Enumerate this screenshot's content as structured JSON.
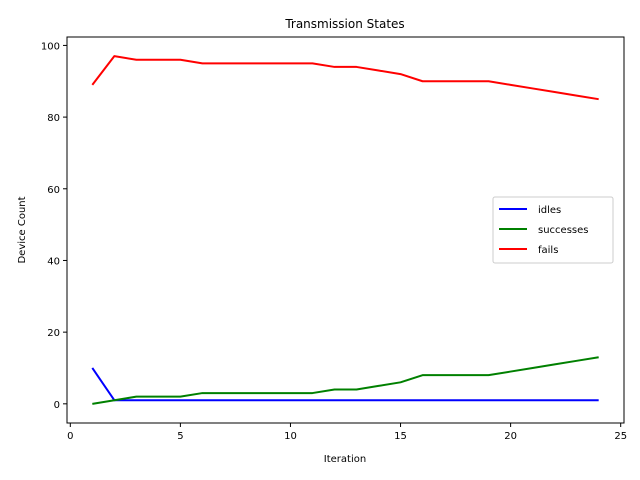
{
  "chart_data": {
    "type": "line",
    "title": "Transmission States",
    "xlabel": "Iteration",
    "ylabel": "Device Count",
    "xlim": [
      0,
      25
    ],
    "ylim": [
      0,
      100
    ],
    "x_ticks": [
      0,
      5,
      10,
      15,
      20,
      25
    ],
    "y_ticks": [
      0,
      20,
      40,
      60,
      80,
      100
    ],
    "grid": false,
    "legend_position": "center-right",
    "x": [
      1,
      2,
      3,
      4,
      5,
      6,
      7,
      8,
      9,
      10,
      11,
      12,
      13,
      14,
      15,
      16,
      17,
      18,
      19,
      20,
      21,
      22,
      23,
      24
    ],
    "series": [
      {
        "name": "idles",
        "color": "#0000ff",
        "values": [
          10,
          1,
          1,
          1,
          1,
          1,
          1,
          1,
          1,
          1,
          1,
          1,
          1,
          1,
          1,
          1,
          1,
          1,
          1,
          1,
          1,
          1,
          1,
          1
        ]
      },
      {
        "name": "successes",
        "color": "#008000",
        "values": [
          0,
          1,
          2,
          2,
          2,
          3,
          3,
          3,
          3,
          3,
          3,
          4,
          4,
          5,
          6,
          8,
          8,
          8,
          8,
          9,
          10,
          11,
          12,
          13
        ]
      },
      {
        "name": "fails",
        "color": "#ff0000",
        "values": [
          89,
          97,
          96,
          96,
          96,
          95,
          95,
          95,
          95,
          95,
          95,
          94,
          94,
          93,
          92,
          90,
          90,
          90,
          90,
          89,
          88,
          87,
          86,
          85
        ]
      }
    ]
  }
}
